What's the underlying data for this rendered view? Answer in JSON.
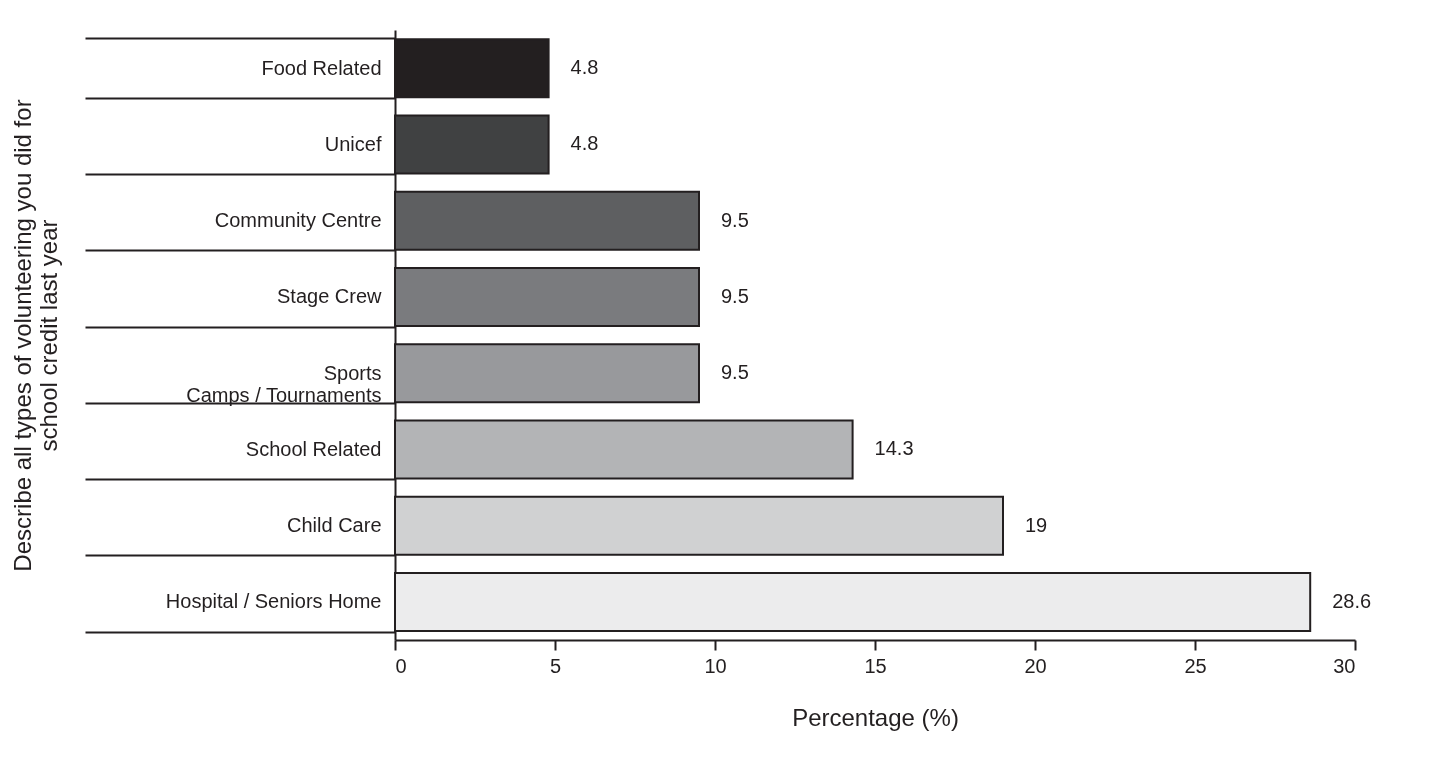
{
  "chart_data": {
    "type": "bar",
    "orientation": "horizontal",
    "ylabel": "Describe all types of volunteering you did for\nschool credit last year",
    "xlabel": "Percentage (%)",
    "categories": [
      "Food Related",
      "Unicef",
      "Community Centre",
      "Stage Crew",
      "Sports\nCamps / Tournaments",
      "School Related",
      "Child Care",
      "Hospital / Seniors Home"
    ],
    "values": [
      4.8,
      4.8,
      9.5,
      9.5,
      9.5,
      14.3,
      19,
      28.6
    ],
    "colors": [
      "#231f20",
      "#404142",
      "#5e5f61",
      "#7a7b7e",
      "#98999c",
      "#b3b4b6",
      "#d0d1d2",
      "#ececed"
    ],
    "xlim": [
      0,
      30
    ],
    "xticks": [
      0,
      5,
      10,
      15,
      20,
      25,
      30
    ],
    "grid": false,
    "legend": false,
    "data_labels": true
  }
}
